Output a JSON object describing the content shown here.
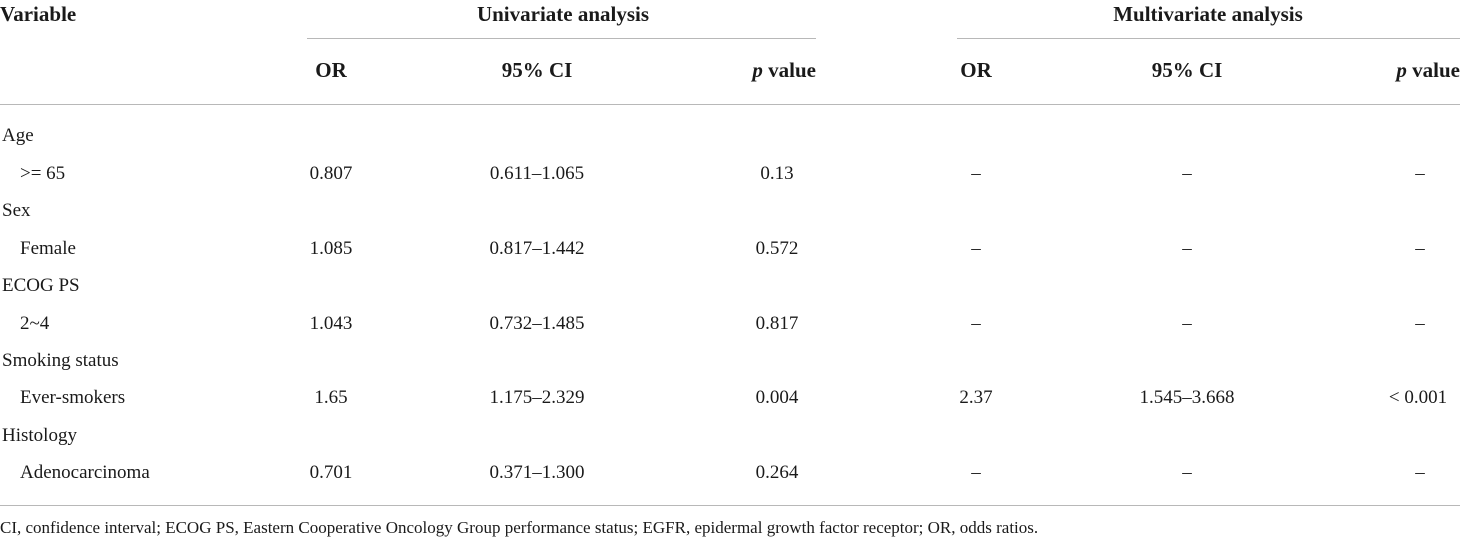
{
  "header": {
    "variable": "Variable",
    "univariate": "Univariate analysis",
    "multivariate": "Multivariate analysis",
    "or": "OR",
    "ci": "95% CI",
    "p_italic": "p",
    "p_rest": " value"
  },
  "rows": [
    {
      "category": "Age",
      "sub": ">= 65",
      "u_or": "0.807",
      "u_ci": "0.611–1.065",
      "u_p": "0.13",
      "m_or": "–",
      "m_ci": "–",
      "m_p": "–"
    },
    {
      "category": "Sex",
      "sub": "Female",
      "u_or": "1.085",
      "u_ci": "0.817–1.442",
      "u_p": "0.572",
      "m_or": "–",
      "m_ci": "–",
      "m_p": "–"
    },
    {
      "category": "ECOG PS",
      "sub": "2~4",
      "u_or": "1.043",
      "u_ci": "0.732–1.485",
      "u_p": "0.817",
      "m_or": "–",
      "m_ci": "–",
      "m_p": "–"
    },
    {
      "category": "Smoking status",
      "sub": "Ever-smokers",
      "u_or": "1.65",
      "u_ci": "1.175–2.329",
      "u_p": "0.004",
      "m_or": "2.37",
      "m_ci": "1.545–3.668",
      "m_p": "< 0.001"
    },
    {
      "category": "Histology",
      "sub": "Adenocarcinoma",
      "u_or": "0.701",
      "u_ci": "0.371–1.300",
      "u_p": "0.264",
      "m_or": "–",
      "m_ci": "–",
      "m_p": "–"
    }
  ],
  "footnote": "CI, confidence interval; ECOG PS, Eastern Cooperative Oncology Group performance status; EGFR, epidermal growth factor receptor; OR, odds ratios."
}
